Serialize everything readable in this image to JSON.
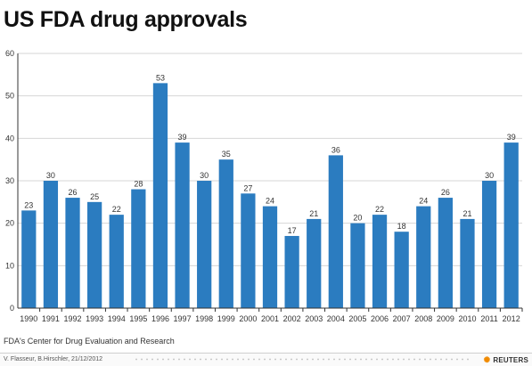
{
  "title": "US FDA drug approvals",
  "source": "FDA's Center for Drug Evaluation and Research",
  "credit": "V. Flasseur,  B.Hirschler, 21/12/2012",
  "brand": "REUTERS",
  "colors": {
    "bar": "#2b7cc0",
    "axis": "#333333",
    "grid": "#d6d6d6"
  },
  "chart_data": {
    "type": "bar",
    "title": "US FDA drug approvals",
    "xlabel": "",
    "ylabel": "",
    "ylim": [
      0,
      60
    ],
    "yticks": [
      0,
      10,
      20,
      30,
      40,
      50,
      60
    ],
    "grid": true,
    "categories": [
      "1990",
      "1991",
      "1992",
      "1993",
      "1994",
      "1995",
      "1996",
      "1997",
      "1998",
      "1999",
      "2000",
      "2001",
      "2002",
      "2003",
      "2004",
      "2005",
      "2006",
      "2007",
      "2008",
      "2009",
      "2010",
      "2011",
      "2012"
    ],
    "values": [
      23,
      30,
      26,
      25,
      22,
      28,
      53,
      39,
      30,
      35,
      27,
      24,
      17,
      21,
      36,
      20,
      22,
      18,
      24,
      26,
      21,
      30,
      39
    ]
  }
}
